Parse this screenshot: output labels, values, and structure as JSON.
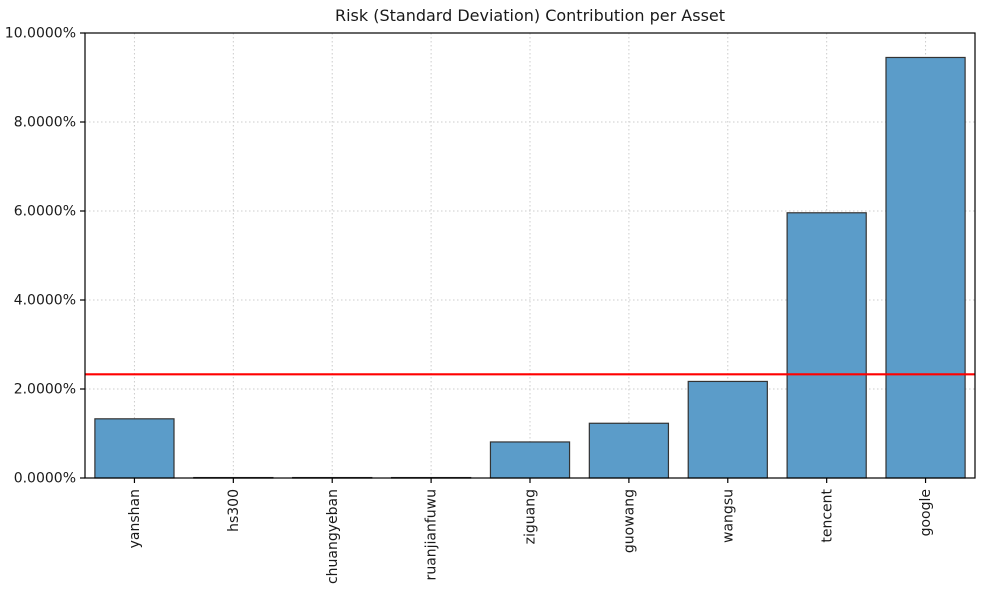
{
  "chart_data": {
    "type": "bar",
    "title": "Risk (Standard Deviation) Contribution per Asset",
    "categories": [
      "yanshan",
      "hs300",
      "chuangyeban",
      "ruanjianfuwu",
      "ziguang",
      "guowang",
      "wangsu",
      "tencent",
      "google"
    ],
    "values": [
      1.33,
      0.01,
      0.01,
      0.01,
      0.81,
      1.23,
      2.17,
      5.96,
      9.45
    ],
    "unit": "%",
    "xlabel": "",
    "ylabel": "",
    "ylim": [
      0,
      10
    ],
    "ytick_values": [
      0,
      2,
      4,
      6,
      8,
      10
    ],
    "ytick_labels": [
      "0.0000%",
      "2.0000%",
      "4.0000%",
      "6.0000%",
      "8.0000%",
      "10.0000%"
    ],
    "grid": true,
    "legend": "none",
    "threshold_line": {
      "value": 2.33,
      "color": "#ff0000"
    },
    "style": {
      "bar_color": "#5b9cc9",
      "bar_edge_color": "#333333",
      "grid_color": "#cccccc",
      "axis_color": "#000000",
      "background": "#ffffff",
      "tick_label_color": "#1a1a1a"
    }
  }
}
